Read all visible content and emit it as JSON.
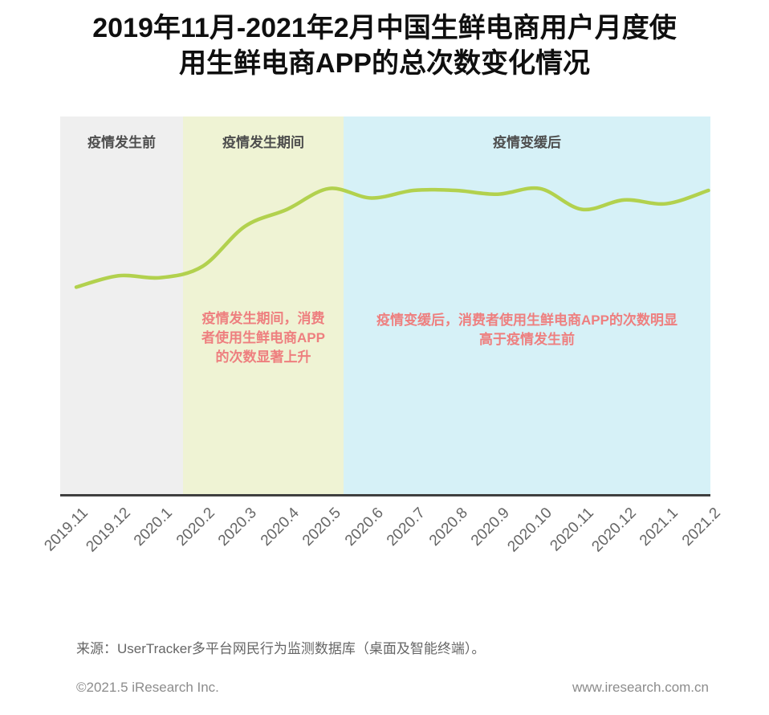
{
  "header": {
    "title_lines": [
      "2019年11月-2021年2月中国生鲜电商用户月度使",
      "用生鲜电商APP的总次数变化情况"
    ]
  },
  "chart_data": {
    "type": "line",
    "title": "2019年11月-2021年2月中国生鲜电商用户月度使用生鲜电商APP的总次数变化情况",
    "categories": [
      "2019.11",
      "2019.12",
      "2020.1",
      "2020.2",
      "2020.3",
      "2020.4",
      "2020.5",
      "2020.6",
      "2020.7",
      "2020.8",
      "2020.9",
      "2020.10",
      "2020.11",
      "2020.12",
      "2021.1",
      "2021.2"
    ],
    "values": [
      55,
      58,
      57.5,
      60.5,
      71,
      75.5,
      81,
      78.5,
      80.5,
      80.5,
      79.5,
      81,
      75.5,
      78,
      77,
      80.5
    ],
    "xlabel": "",
    "ylabel": "",
    "ylim": [
      0,
      100
    ],
    "y_axis_shown": false,
    "grid": false,
    "legend": false,
    "line_color": "#b2d14e",
    "zones": [
      {
        "label": "疫情发生前",
        "from": "2019.11",
        "to": "2020.1",
        "bg": "#efefef"
      },
      {
        "label": "疫情发生期间",
        "from": "2020.2",
        "to": "2020.5",
        "bg": "#eff3d4"
      },
      {
        "label": "疫情变缓后",
        "from": "2020.6",
        "to": "2021.2",
        "bg": "#d6f1f7"
      }
    ],
    "annotations": [
      {
        "zone": "疫情发生期间",
        "lines": [
          "疫情发生期间，消费",
          "者使用生鲜电商APP",
          "的次数显著上升"
        ],
        "color": "#ee7f7f"
      },
      {
        "zone": "疫情变缓后",
        "lines": [
          "疫情变缓后，消费者使用生鲜电商APP的次数明显",
          "高于疫情发生前"
        ],
        "color": "#ee7f7f"
      }
    ]
  },
  "source": {
    "text": "来源：UserTracker多平台网民行为监测数据库（桌面及智能终端）。"
  },
  "footer": {
    "copyright": "©2021.5 iResearch Inc.",
    "website": "www.iresearch.com.cn"
  }
}
